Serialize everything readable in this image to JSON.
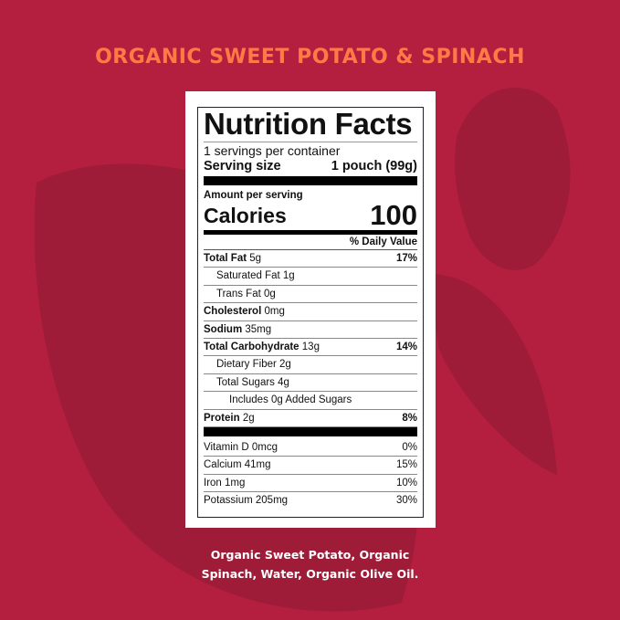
{
  "colors": {
    "background": "#b51f3f",
    "leaf": "#9a1c37",
    "title": "#ff7a45"
  },
  "title": "ORGANIC SWEET POTATO & SPINACH",
  "label": {
    "heading": "Nutrition Facts",
    "servings": "1 servings per container",
    "serving_size_label": "Serving size",
    "serving_size_value": "1 pouch (99g)",
    "amount_per_serving": "Amount per serving",
    "calories_label": "Calories",
    "calories_value": "100",
    "daily_value_header": "% Daily Value",
    "nutrients": [
      {
        "name": "Total Fat",
        "amount": "5g",
        "dv": "17%"
      },
      {
        "name": "Saturated Fat",
        "amount": "1g",
        "dv": ""
      },
      {
        "name": "Trans Fat",
        "amount": "0g",
        "dv": ""
      },
      {
        "name": "Cholesterol",
        "amount": "0mg",
        "dv": ""
      },
      {
        "name": "Sodium",
        "amount": "35mg",
        "dv": ""
      },
      {
        "name": "Total Carbohydrate",
        "amount": "13g",
        "dv": "14%"
      },
      {
        "name": "Dietary Fiber",
        "amount": "2g",
        "dv": ""
      },
      {
        "name": "Total Sugars",
        "amount": "4g",
        "dv": ""
      },
      {
        "name": "Includes 0g Added Sugars",
        "amount": "",
        "dv": ""
      },
      {
        "name": "Protein",
        "amount": "2g",
        "dv": "8%"
      }
    ],
    "vitamins": [
      {
        "name": "Vitamin D",
        "amount": "0mcg",
        "dv": "0%"
      },
      {
        "name": "Calcium",
        "amount": "41mg",
        "dv": "15%"
      },
      {
        "name": "Iron",
        "amount": "1mg",
        "dv": "10%"
      },
      {
        "name": "Potassium",
        "amount": "205mg",
        "dv": "30%"
      }
    ]
  },
  "ingredients": [
    "Organic Sweet Potato, Organic",
    "Spinach, Water, Organic Olive Oil."
  ]
}
